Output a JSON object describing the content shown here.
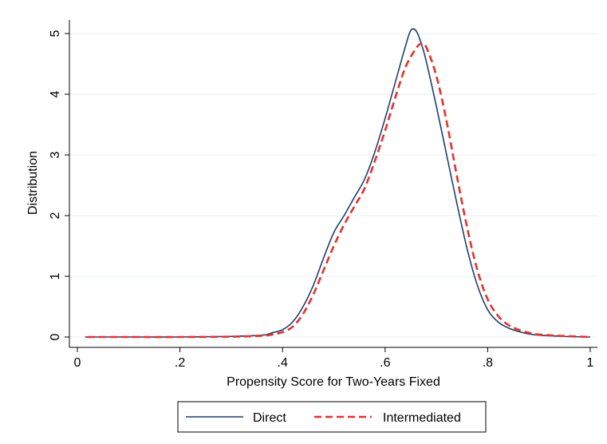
{
  "chart_data": {
    "type": "line",
    "title": "",
    "xlabel": "Propensity Score for Two-Years Fixed",
    "ylabel": "Distribution",
    "xlim": [
      0,
      1
    ],
    "ylim": [
      0,
      5
    ],
    "xticks": [
      {
        "value": 0,
        "label": "0"
      },
      {
        "value": 0.2,
        "label": ".2"
      },
      {
        "value": 0.4,
        "label": ".4"
      },
      {
        "value": 0.6,
        "label": ".6"
      },
      {
        "value": 0.8,
        "label": ".8"
      },
      {
        "value": 1,
        "label": "1"
      }
    ],
    "yticks": [
      {
        "value": 0,
        "label": "0"
      },
      {
        "value": 1,
        "label": "1"
      },
      {
        "value": 2,
        "label": "2"
      },
      {
        "value": 3,
        "label": "3"
      },
      {
        "value": 4,
        "label": "4"
      },
      {
        "value": 5,
        "label": "5"
      }
    ],
    "grid": "horizontal",
    "legend_position": "bottom",
    "series": [
      {
        "name": "Direct",
        "color": "#1f3f6e",
        "dash": "solid",
        "points": [
          [
            0.015,
            0.0
          ],
          [
            0.1,
            0.0
          ],
          [
            0.2,
            0.0
          ],
          [
            0.3,
            0.01
          ],
          [
            0.36,
            0.03
          ],
          [
            0.38,
            0.07
          ],
          [
            0.4,
            0.12
          ],
          [
            0.42,
            0.25
          ],
          [
            0.44,
            0.5
          ],
          [
            0.46,
            0.85
          ],
          [
            0.48,
            1.3
          ],
          [
            0.5,
            1.72
          ],
          [
            0.52,
            2.0
          ],
          [
            0.54,
            2.3
          ],
          [
            0.56,
            2.6
          ],
          [
            0.58,
            3.05
          ],
          [
            0.6,
            3.6
          ],
          [
            0.62,
            4.2
          ],
          [
            0.64,
            4.8
          ],
          [
            0.65,
            5.05
          ],
          [
            0.66,
            5.05
          ],
          [
            0.67,
            4.85
          ],
          [
            0.68,
            4.55
          ],
          [
            0.7,
            3.8
          ],
          [
            0.72,
            3.0
          ],
          [
            0.74,
            2.2
          ],
          [
            0.76,
            1.45
          ],
          [
            0.78,
            0.85
          ],
          [
            0.8,
            0.45
          ],
          [
            0.82,
            0.25
          ],
          [
            0.84,
            0.15
          ],
          [
            0.86,
            0.09
          ],
          [
            0.88,
            0.05
          ],
          [
            0.9,
            0.03
          ],
          [
            0.95,
            0.01
          ],
          [
            1.0,
            0.0
          ]
        ]
      },
      {
        "name": "Intermediated",
        "color": "#e8302a",
        "dash": "dashed",
        "points": [
          [
            0.02,
            0.0
          ],
          [
            0.1,
            0.0
          ],
          [
            0.2,
            0.0
          ],
          [
            0.3,
            0.005
          ],
          [
            0.36,
            0.02
          ],
          [
            0.38,
            0.04
          ],
          [
            0.4,
            0.08
          ],
          [
            0.42,
            0.17
          ],
          [
            0.44,
            0.38
          ],
          [
            0.46,
            0.7
          ],
          [
            0.48,
            1.1
          ],
          [
            0.5,
            1.5
          ],
          [
            0.52,
            1.85
          ],
          [
            0.54,
            2.15
          ],
          [
            0.56,
            2.45
          ],
          [
            0.58,
            2.9
          ],
          [
            0.6,
            3.4
          ],
          [
            0.62,
            3.95
          ],
          [
            0.64,
            4.45
          ],
          [
            0.66,
            4.75
          ],
          [
            0.67,
            4.83
          ],
          [
            0.68,
            4.78
          ],
          [
            0.7,
            4.3
          ],
          [
            0.72,
            3.55
          ],
          [
            0.74,
            2.65
          ],
          [
            0.76,
            1.8
          ],
          [
            0.78,
            1.1
          ],
          [
            0.8,
            0.62
          ],
          [
            0.82,
            0.35
          ],
          [
            0.84,
            0.2
          ],
          [
            0.86,
            0.12
          ],
          [
            0.88,
            0.07
          ],
          [
            0.9,
            0.04
          ],
          [
            0.95,
            0.015
          ],
          [
            1.0,
            0.0
          ]
        ]
      }
    ]
  }
}
